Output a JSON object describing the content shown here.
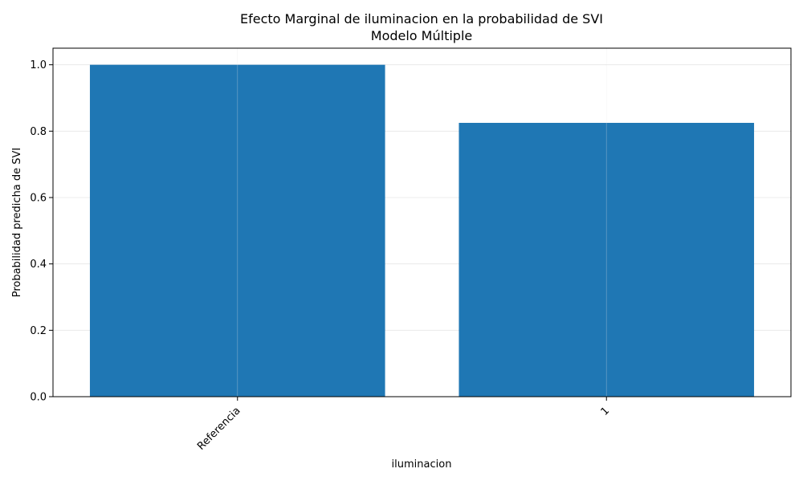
{
  "chart_data": {
    "type": "bar",
    "title": "Efecto Marginal de iluminacion en la probabilidad de SVI",
    "subtitle": "Modelo Múltiple",
    "xlabel": "iluminacion",
    "ylabel": "Probabilidad predicha de SVI",
    "categories": [
      "Referencia",
      "1"
    ],
    "values": [
      1.0,
      0.825
    ],
    "ylim": [
      0,
      1.05
    ],
    "yticks": [
      "0.0",
      "0.2",
      "0.4",
      "0.6",
      "0.8",
      "1.0"
    ],
    "grid": true,
    "bar_color": "#1f77b4",
    "grid_color": "#e6e6e6"
  }
}
